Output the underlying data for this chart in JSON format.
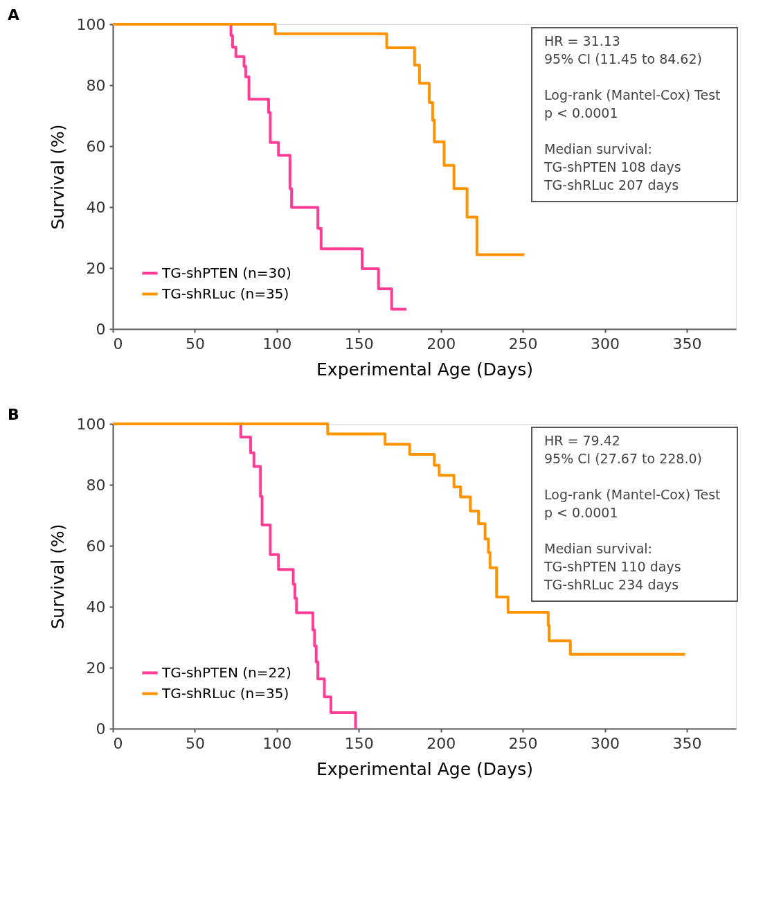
{
  "chart_data": [
    {
      "type": "step",
      "title": "A",
      "xlabel": "Experimental Age (Days)",
      "ylabel": "Survival (%)",
      "xlim": [
        0,
        380
      ],
      "xticks": [
        0,
        50,
        100,
        150,
        200,
        250,
        300,
        350
      ],
      "ylim": [
        0,
        100
      ],
      "yticks": [
        0,
        20,
        40,
        60,
        80,
        100
      ],
      "grid": false,
      "legend": "bottom left",
      "annotations": [
        "HR = 31.13\n95% CI (11.45 to 84.62)",
        "Log-rank (Mantel-Cox) Test\np < 0.0001",
        "Median survival:\n   TG-shPTEN    108 days\n   TG-shRLuc     207 days"
      ],
      "series": [
        {
          "name": "TG-shPTEN (n=30)",
          "color": "#ff3d96",
          "x": [
            0,
            72,
            73,
            75,
            80,
            81,
            83,
            95,
            96,
            101,
            108,
            109,
            125,
            127,
            152,
            162,
            170,
            179
          ],
          "values": [
            100,
            96.3,
            92.5,
            89.4,
            86.2,
            82.7,
            75.4,
            71,
            61.2,
            57,
            46,
            39.9,
            33,
            26.3,
            19.8,
            13.2,
            6.5,
            6.5
          ]
        },
        {
          "name": "TG-shRLuc (n=35)",
          "color": "#ff9400",
          "x": [
            0,
            99,
            167,
            184,
            187,
            193,
            195,
            196,
            202,
            208,
            216,
            222,
            251
          ],
          "values": [
            100,
            96.9,
            92.3,
            86.6,
            80.6,
            74.3,
            68.5,
            61.4,
            53.7,
            46.1,
            36.7,
            24.4,
            24.4
          ]
        }
      ]
    },
    {
      "type": "step",
      "title": "B",
      "xlabel": "Experimental Age (Days)",
      "ylabel": "Survival (%)",
      "xlim": [
        0,
        380
      ],
      "xticks": [
        0,
        50,
        100,
        150,
        200,
        250,
        300,
        350
      ],
      "ylim": [
        0,
        100
      ],
      "yticks": [
        0,
        20,
        40,
        60,
        80,
        100
      ],
      "grid": false,
      "legend": "bottom left",
      "annotations": [
        "HR = 79.42\n95% CI (27.67 to 228.0)",
        "Log-rank (Mantel-Cox) Test\np < 0.0001",
        "Median survival:\n   TG-shPTEN    110 days\n   TG-shRLuc     234 days"
      ],
      "series": [
        {
          "name": "TG-shPTEN (n=22)",
          "color": "#ff3d96",
          "x": [
            0,
            78,
            84,
            86,
            90,
            91,
            96,
            101,
            110,
            111,
            112,
            122,
            123,
            124,
            125,
            129,
            133,
            148
          ],
          "values": [
            100,
            95.7,
            90.5,
            86,
            76.2,
            66.8,
            57.1,
            52.2,
            47.4,
            42.8,
            38,
            32.4,
            27.1,
            21.9,
            16.3,
            10.4,
            5.2,
            0
          ]
        },
        {
          "name": "TG-shRLuc (n=35)",
          "color": "#ff9400",
          "x": [
            0,
            131,
            166,
            181,
            196,
            199,
            208,
            212,
            218,
            223,
            227,
            229,
            230,
            234,
            241,
            265.5,
            266,
            279,
            349
          ],
          "values": [
            100,
            96.7,
            93.3,
            90,
            86.4,
            83.1,
            79.3,
            76,
            71.4,
            67.2,
            62.2,
            57.8,
            52.8,
            43.2,
            38.2,
            33.8,
            28.8,
            24.4,
            24.4
          ]
        }
      ]
    }
  ]
}
